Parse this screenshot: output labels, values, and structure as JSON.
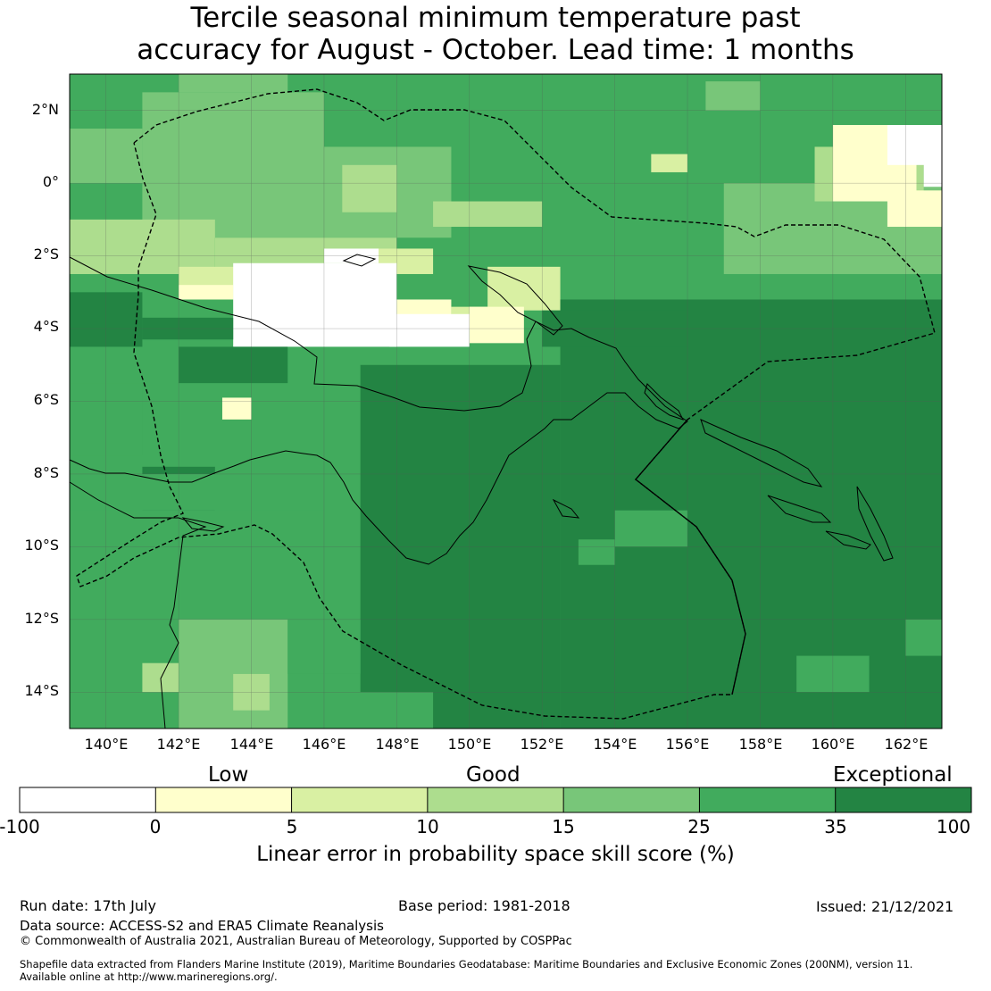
{
  "title_line1": "Tercile seasonal minimum temperature past",
  "title_line2": "accuracy for August - October. Lead time: 1 months",
  "map": {
    "lon_range": [
      139,
      163
    ],
    "lat_range": [
      -15,
      3
    ],
    "lat_ticks": [
      "2°N",
      "0°",
      "2°S",
      "4°S",
      "6°S",
      "8°S",
      "10°S",
      "12°S",
      "14°S"
    ],
    "lon_ticks": [
      "140°E",
      "142°E",
      "144°E",
      "146°E",
      "148°E",
      "150°E",
      "152°E",
      "154°E",
      "156°E",
      "158°E",
      "160°E",
      "162°E"
    ]
  },
  "colorbar": {
    "category_labels": [
      "Low",
      "Good",
      "Exceptional"
    ],
    "tick_labels": [
      "-100",
      "0",
      "5",
      "10",
      "15",
      "25",
      "35",
      "100"
    ],
    "colors": [
      "#ffffff",
      "#ffffcc",
      "#d9f0a3",
      "#addd8e",
      "#78c679",
      "#41ab5d",
      "#238443"
    ],
    "label": "Linear error in probability space skill score (%)"
  },
  "footer": {
    "run_date": "Run date: 17th July",
    "base_period": "Base period: 1981-2018",
    "issued": "Issued: 21/12/2021",
    "data_source": "Data source: ACCESS-S2 and ERA5 Climate Reanalysis",
    "copyright": "© Commonwealth of Australia 2021, Australian Bureau of Meteorology, Supported by COSPPac",
    "shapefile_line1": "Shapefile data extracted from Flanders Marine Institute (2019), Maritime Boundaries Geodatabase: Maritime Boundaries and Exclusive Economic Zones (200NM), version 11.",
    "shapefile_line2": "Available online at http://www.marineregions.org/."
  }
}
